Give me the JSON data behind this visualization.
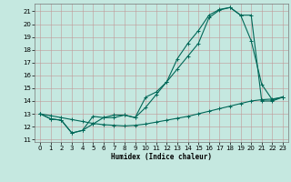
{
  "xlabel": "Humidex (Indice chaleur)",
  "xlim": [
    -0.5,
    23.5
  ],
  "ylim": [
    10.8,
    21.6
  ],
  "yticks": [
    11,
    12,
    13,
    14,
    15,
    16,
    17,
    18,
    19,
    20,
    21
  ],
  "xticks": [
    0,
    1,
    2,
    3,
    4,
    5,
    6,
    7,
    8,
    9,
    10,
    11,
    12,
    13,
    14,
    15,
    16,
    17,
    18,
    19,
    20,
    21,
    22,
    23
  ],
  "bg_color": "#c5e8e0",
  "grid_color": "#c09898",
  "line_color": "#006858",
  "line1_x": [
    0,
    1,
    2,
    3,
    4,
    5,
    6,
    7,
    8,
    9,
    10,
    11,
    12,
    13,
    14,
    15,
    16,
    17,
    18,
    19,
    20,
    21,
    22,
    23
  ],
  "line1_y": [
    13,
    12.6,
    12.5,
    11.5,
    11.7,
    12.8,
    12.7,
    12.9,
    12.9,
    12.7,
    14.3,
    14.7,
    15.5,
    17.3,
    18.5,
    19.5,
    20.7,
    21.15,
    21.3,
    20.7,
    18.7,
    15.3,
    14.1,
    14.3
  ],
  "line2_x": [
    0,
    1,
    2,
    3,
    4,
    5,
    6,
    7,
    8,
    9,
    10,
    11,
    12,
    13,
    14,
    15,
    16,
    17,
    18,
    19,
    20,
    21,
    22,
    23
  ],
  "line2_y": [
    13,
    12.6,
    12.5,
    11.5,
    11.7,
    12.2,
    12.7,
    12.7,
    12.9,
    12.7,
    13.5,
    14.5,
    15.5,
    16.5,
    17.5,
    18.5,
    20.5,
    21.1,
    21.3,
    20.7,
    20.7,
    14.0,
    14.0,
    14.3
  ],
  "line3_x": [
    0,
    1,
    2,
    3,
    4,
    5,
    6,
    7,
    8,
    9,
    10,
    11,
    12,
    13,
    14,
    15,
    16,
    17,
    18,
    19,
    20,
    21,
    22,
    23
  ],
  "line3_y": [
    13,
    12.85,
    12.7,
    12.55,
    12.4,
    12.25,
    12.15,
    12.1,
    12.05,
    12.1,
    12.2,
    12.35,
    12.5,
    12.65,
    12.8,
    13.0,
    13.2,
    13.4,
    13.6,
    13.8,
    14.0,
    14.1,
    14.15,
    14.3
  ]
}
